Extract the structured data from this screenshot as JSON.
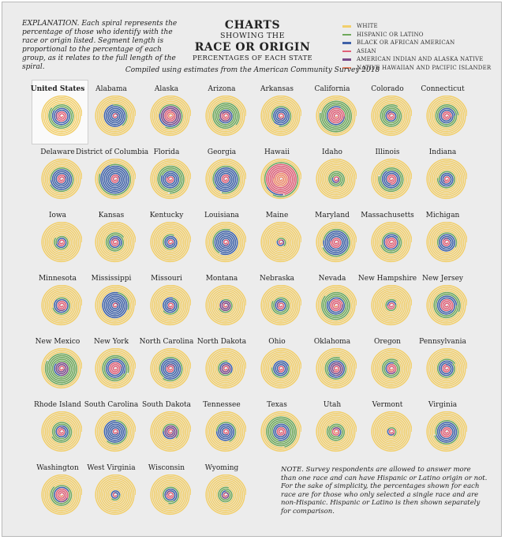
{
  "header": {
    "explanation": "EXPLANATION. Each spiral represents the percentage of those who identify with the race or origin listed. Segment length is proportional to the percentage of each group, as it relates to the full length of the spiral.",
    "title_line1": "CHARTS",
    "title_line2": "SHOWING THE",
    "title_line3": "RACE OR ORIGIN",
    "title_line4": "PERCENTAGES OF EACH STATE",
    "compiled": "Compiled using estimates from the American Community Survey 2018"
  },
  "note": "NOTE. Survey respondents are allowed to answer more than one race and can have Hispanic or Latino origin or not. For the sake of simplicity, the percentages shown for each race are for those who only selected a single race and are non-Hispanic. Hispanic or Latino is then shown separately for comparison.",
  "colors": {
    "background": "#ececec",
    "white": "#f2cf6b",
    "hispanic": "#6ea85a",
    "black": "#3f62a8",
    "asian": "#e06078",
    "aian": "#7a4a8a",
    "nhpi": "#f08a6a"
  },
  "chart_data": {
    "type": "spiral",
    "title": "Race or Origin Percentages of Each State",
    "highlighted": "United States",
    "legend": [
      {
        "key": "white",
        "label": "WHITE"
      },
      {
        "key": "hispanic",
        "label": "HISPANIC OR LATINO"
      },
      {
        "key": "black",
        "label": "BLACK OR AFRICAN AMERICAN"
      },
      {
        "key": "asian",
        "label": "ASIAN"
      },
      {
        "key": "aian",
        "label": "AMERICAN INDIAN AND ALASKA NATIVE"
      },
      {
        "key": "nhpi",
        "label": "NATIVE HAWAIIAN AND PACIFIC ISLANDER"
      }
    ],
    "order": [
      "nhpi",
      "asian",
      "aian",
      "black",
      "hispanic",
      "white"
    ],
    "states": [
      {
        "name": "United States",
        "white": 60,
        "hispanic": 18,
        "black": 12,
        "asian": 6,
        "aian": 1,
        "nhpi": 0.2
      },
      {
        "name": "Alabama",
        "white": 65,
        "hispanic": 4,
        "black": 27,
        "asian": 1,
        "aian": 0.5,
        "nhpi": 0.1
      },
      {
        "name": "Alaska",
        "white": 60,
        "hispanic": 7,
        "black": 3,
        "asian": 6,
        "aian": 15,
        "nhpi": 1.5
      },
      {
        "name": "Arizona",
        "white": 54,
        "hispanic": 31,
        "black": 4,
        "asian": 3,
        "aian": 4,
        "nhpi": 0.2
      },
      {
        "name": "Arkansas",
        "white": 72,
        "hispanic": 7,
        "black": 15,
        "asian": 1.5,
        "aian": 0.6,
        "nhpi": 0.3
      },
      {
        "name": "California",
        "white": 37,
        "hispanic": 39,
        "black": 5.5,
        "asian": 14.5,
        "aian": 0.4,
        "nhpi": 0.4
      },
      {
        "name": "Colorado",
        "white": 68,
        "hispanic": 22,
        "black": 4,
        "asian": 3,
        "aian": 0.6,
        "nhpi": 0.1
      },
      {
        "name": "Connecticut",
        "white": 66,
        "hispanic": 16,
        "black": 10,
        "asian": 4.5,
        "aian": 0.2,
        "nhpi": 0.1
      },
      {
        "name": "Delaware",
        "white": 62,
        "hispanic": 9,
        "black": 22,
        "asian": 4,
        "aian": 0.3,
        "nhpi": 0.1
      },
      {
        "name": "District of Columbia",
        "white": 37,
        "hispanic": 11,
        "black": 45,
        "asian": 4,
        "aian": 0.3,
        "nhpi": 0.1
      },
      {
        "name": "Florida",
        "white": 54,
        "hispanic": 26,
        "black": 16,
        "asian": 3,
        "aian": 0.2,
        "nhpi": 0.1
      },
      {
        "name": "Georgia",
        "white": 53,
        "hispanic": 10,
        "black": 31,
        "asian": 4,
        "aian": 0.2,
        "nhpi": 0.1
      },
      {
        "name": "Hawaii",
        "white": 22,
        "hispanic": 10.5,
        "black": 2,
        "asian": 37,
        "aian": 0.2,
        "nhpi": 10
      },
      {
        "name": "Idaho",
        "white": 82,
        "hispanic": 13,
        "black": 0.7,
        "asian": 1.3,
        "aian": 1,
        "nhpi": 0.1
      },
      {
        "name": "Illinois",
        "white": 61,
        "hispanic": 17,
        "black": 14,
        "asian": 5.5,
        "aian": 0.1,
        "nhpi": 0.1
      },
      {
        "name": "Indiana",
        "white": 79,
        "hispanic": 7,
        "black": 9,
        "asian": 2.3,
        "aian": 0.2,
        "nhpi": 0.1
      },
      {
        "name": "Iowa",
        "white": 85,
        "hispanic": 6,
        "black": 3.5,
        "asian": 2.5,
        "aian": 0.3,
        "nhpi": 0.1
      },
      {
        "name": "Kansas",
        "white": 75,
        "hispanic": 12,
        "black": 5.5,
        "asian": 3,
        "aian": 0.8,
        "nhpi": 0.1
      },
      {
        "name": "Kentucky",
        "white": 84,
        "hispanic": 4,
        "black": 8,
        "asian": 1.5,
        "aian": 0.2,
        "nhpi": 0.1
      },
      {
        "name": "Louisiana",
        "white": 58,
        "hispanic": 5,
        "black": 32,
        "asian": 1.7,
        "aian": 0.5,
        "nhpi": 0.1
      },
      {
        "name": "Maine",
        "white": 93,
        "hispanic": 2,
        "black": 1.3,
        "asian": 1.1,
        "aian": 0.6,
        "nhpi": 0.1
      },
      {
        "name": "Maryland",
        "white": 50,
        "hispanic": 10,
        "black": 29,
        "asian": 6.5,
        "aian": 0.2,
        "nhpi": 0.1
      },
      {
        "name": "Massachusetts",
        "white": 71,
        "hispanic": 12,
        "black": 7,
        "asian": 7,
        "aian": 0.1,
        "nhpi": 0.1
      },
      {
        "name": "Michigan",
        "white": 74,
        "hispanic": 5,
        "black": 14,
        "asian": 3.2,
        "aian": 0.5,
        "nhpi": 0.1
      },
      {
        "name": "Minnesota",
        "white": 79,
        "hispanic": 5.5,
        "black": 6.5,
        "asian": 5,
        "aian": 1,
        "nhpi": 0.1
      },
      {
        "name": "Mississippi",
        "white": 56,
        "hispanic": 3,
        "black": 38,
        "asian": 1,
        "aian": 0.5,
        "nhpi": 0.1
      },
      {
        "name": "Missouri",
        "white": 79,
        "hispanic": 4,
        "black": 11,
        "asian": 2,
        "aian": 0.4,
        "nhpi": 0.1
      },
      {
        "name": "Montana",
        "white": 86,
        "hispanic": 4,
        "black": 0.5,
        "asian": 0.8,
        "aian": 6,
        "nhpi": 0.1
      },
      {
        "name": "Nebraska",
        "white": 78,
        "hispanic": 11,
        "black": 4.5,
        "asian": 2.5,
        "aian": 0.8,
        "nhpi": 0.1
      },
      {
        "name": "Nevada",
        "white": 48,
        "hispanic": 29,
        "black": 9,
        "asian": 8,
        "aian": 1,
        "nhpi": 0.7
      },
      {
        "name": "New Hampshire",
        "white": 90,
        "hispanic": 4,
        "black": 1.5,
        "asian": 2.8,
        "aian": 0.1,
        "nhpi": 0.1
      },
      {
        "name": "New Jersey",
        "white": 55,
        "hispanic": 20,
        "black": 12.5,
        "asian": 9.5,
        "aian": 0.1,
        "nhpi": 0.1
      },
      {
        "name": "New Mexico",
        "white": 37,
        "hispanic": 49,
        "black": 2,
        "asian": 1.5,
        "aian": 9,
        "nhpi": 0.1
      },
      {
        "name": "New York",
        "white": 55,
        "hispanic": 19,
        "black": 14,
        "asian": 8.5,
        "aian": 0.3,
        "nhpi": 0.1
      },
      {
        "name": "North Carolina",
        "white": 63,
        "hispanic": 9.5,
        "black": 21,
        "asian": 3,
        "aian": 1.2,
        "nhpi": 0.1
      },
      {
        "name": "North Dakota",
        "white": 84,
        "hispanic": 4,
        "black": 3,
        "asian": 1.5,
        "aian": 5,
        "nhpi": 0.1
      },
      {
        "name": "Ohio",
        "white": 79,
        "hispanic": 4,
        "black": 12,
        "asian": 2.3,
        "aian": 0.2,
        "nhpi": 0.1
      },
      {
        "name": "Oklahoma",
        "white": 65,
        "hispanic": 11,
        "black": 7,
        "asian": 2.2,
        "aian": 7.5,
        "nhpi": 0.2
      },
      {
        "name": "Oregon",
        "white": 75,
        "hispanic": 13,
        "black": 2,
        "asian": 4.5,
        "aian": 1,
        "nhpi": 0.4
      },
      {
        "name": "Pennsylvania",
        "white": 76,
        "hispanic": 7.5,
        "black": 10.5,
        "asian": 3.5,
        "aian": 0.1,
        "nhpi": 0.1
      },
      {
        "name": "Rhode Island",
        "white": 72,
        "hispanic": 16,
        "black": 6,
        "asian": 3.5,
        "aian": 0.4,
        "nhpi": 0.1
      },
      {
        "name": "South Carolina",
        "white": 63,
        "hispanic": 6,
        "black": 27,
        "asian": 1.6,
        "aian": 0.3,
        "nhpi": 0.1
      },
      {
        "name": "South Dakota",
        "white": 82,
        "hispanic": 4,
        "black": 2,
        "asian": 1.3,
        "aian": 8.5,
        "nhpi": 0.1
      },
      {
        "name": "Tennessee",
        "white": 74,
        "hispanic": 5.5,
        "black": 16.5,
        "asian": 1.8,
        "aian": 0.2,
        "nhpi": 0.1
      },
      {
        "name": "Texas",
        "white": 42,
        "hispanic": 39.5,
        "black": 12,
        "asian": 4.8,
        "aian": 0.3,
        "nhpi": 0.1
      },
      {
        "name": "Utah",
        "white": 78,
        "hispanic": 14,
        "black": 1,
        "asian": 2.3,
        "aian": 1,
        "nhpi": 0.9
      },
      {
        "name": "Vermont",
        "white": 93,
        "hispanic": 2,
        "black": 1.2,
        "asian": 1.7,
        "aian": 0.3,
        "nhpi": 0.1
      },
      {
        "name": "Virginia",
        "white": 61,
        "hispanic": 9.5,
        "black": 19,
        "asian": 6.5,
        "aian": 0.2,
        "nhpi": 0.1
      },
      {
        "name": "Washington",
        "white": 68,
        "hispanic": 13,
        "black": 3.7,
        "asian": 8.5,
        "aian": 1.2,
        "nhpi": 0.7
      },
      {
        "name": "West Virginia",
        "white": 92,
        "hispanic": 1.5,
        "black": 3.5,
        "asian": 0.8,
        "aian": 0.2,
        "nhpi": 0.1
      },
      {
        "name": "Wisconsin",
        "white": 81,
        "hispanic": 7,
        "black": 6.3,
        "asian": 2.8,
        "aian": 0.8,
        "nhpi": 0.1
      },
      {
        "name": "Wyoming",
        "white": 84,
        "hispanic": 10,
        "black": 0.8,
        "asian": 0.8,
        "aian": 2,
        "nhpi": 0.1
      }
    ]
  }
}
